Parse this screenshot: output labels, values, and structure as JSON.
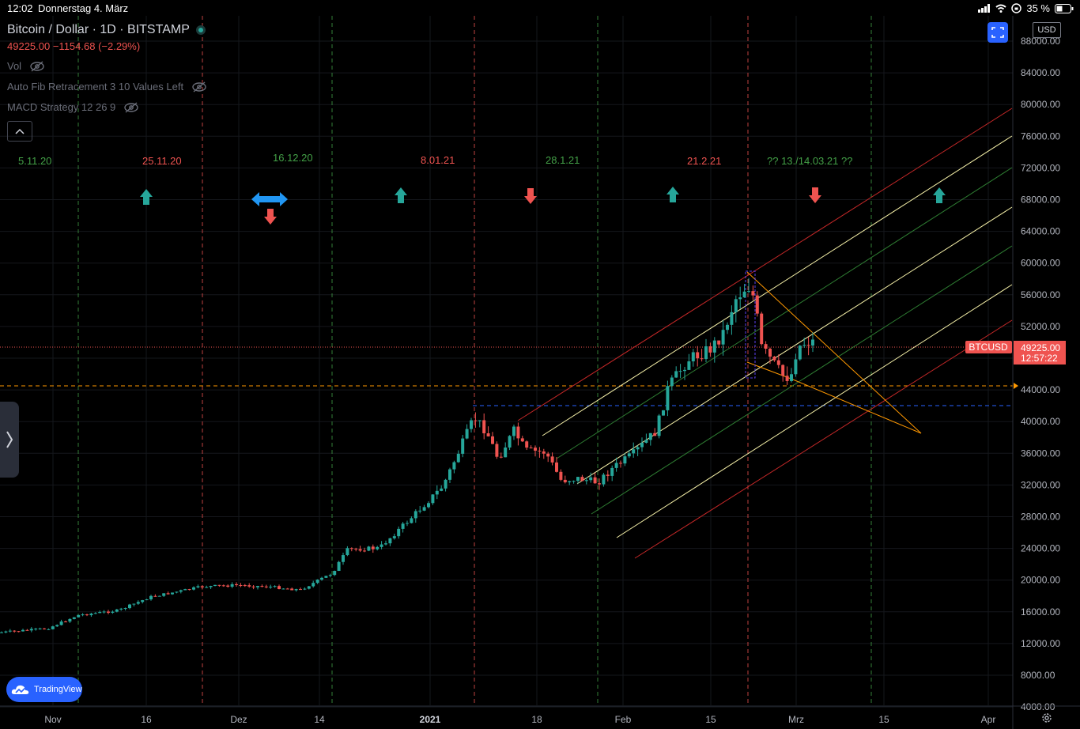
{
  "status_bar": {
    "time": "12:02",
    "date": "Donnerstag 4. März",
    "battery": "35 %"
  },
  "legend": {
    "title": "Bitcoin / Dollar · 1D · BITSTAMP",
    "price_line": "49225.00  −1154.68 (−2.29%)",
    "indicators": [
      "Vol",
      "Auto Fib Retracement 3 10 Values Left",
      "MACD Strategy 12 26 9"
    ]
  },
  "currency_button": "USD",
  "price_axis": [
    "88000.00",
    "84000.00",
    "80000.00",
    "76000.00",
    "72000.00",
    "68000.00",
    "64000.00",
    "60000.00",
    "56000.00",
    "52000.00",
    "44000.00",
    "40000.00",
    "36000.00",
    "32000.00",
    "28000.00",
    "24000.00",
    "20000.00",
    "16000.00",
    "12000.00",
    "8000.00",
    "4000.00"
  ],
  "time_axis": [
    "Nov",
    "16",
    "Dez",
    "14",
    "2021",
    "18",
    "Feb",
    "15",
    "Mrz",
    "15",
    "Apr"
  ],
  "price_label": {
    "symbol": "BTCUSD",
    "price": "49225.00",
    "countdown": "12:57:22"
  },
  "annotations": [
    {
      "text": "5.11.20",
      "color": "green"
    },
    {
      "text": "25.11.20",
      "color": "red"
    },
    {
      "text": "16.12.20",
      "color": "green"
    },
    {
      "text": "8.01.21",
      "color": "red"
    },
    {
      "text": "28.1.21",
      "color": "green"
    },
    {
      "text": "21.2.21",
      "color": "red"
    },
    {
      "text": "?? 13./14.03.21 ??",
      "color": "green"
    }
  ],
  "branding": "TradingView",
  "colors": {
    "up": "#26a69a",
    "down": "#ef5350",
    "accent": "#2962ff",
    "background": "#000000"
  }
}
